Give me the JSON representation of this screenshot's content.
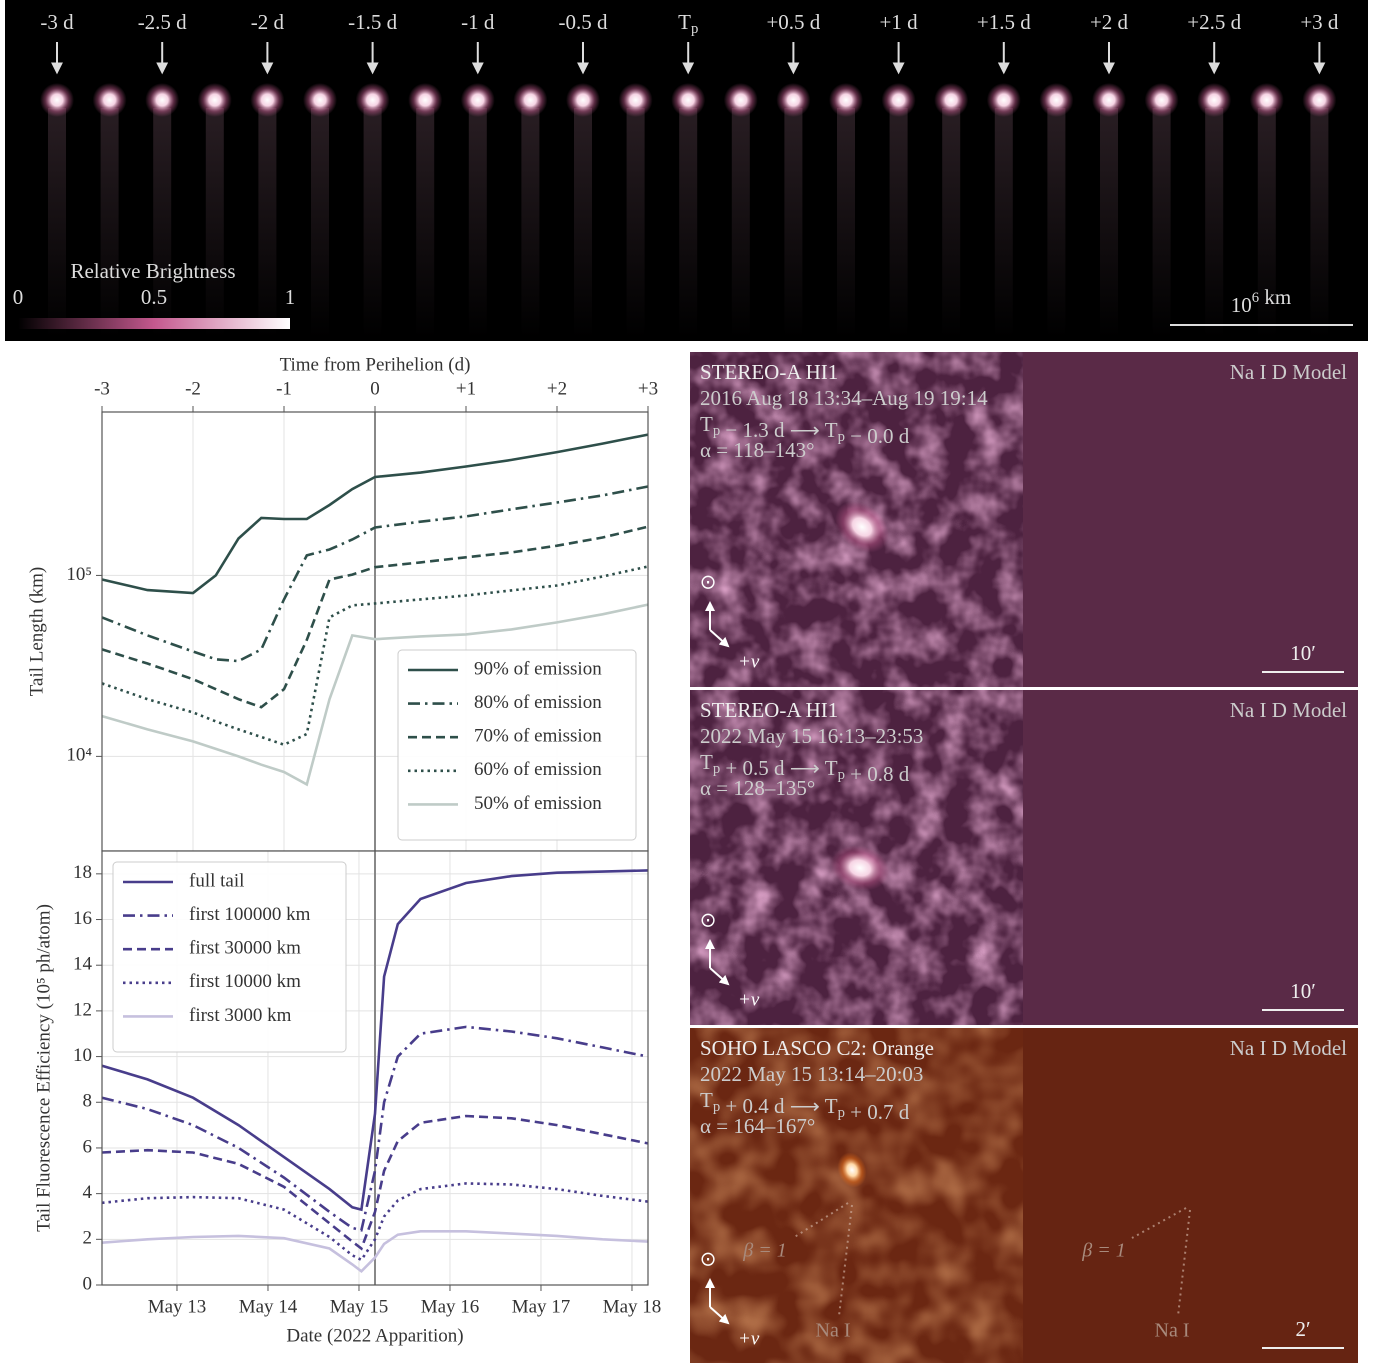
{
  "strip": {
    "labels": [
      "-3 d",
      "-2.5 d",
      "-2 d",
      "-1.5 d",
      "-1 d",
      "-0.5 d",
      [
        "T",
        {
          "sub": "p"
        }
      ],
      "+0.5 d",
      "+1 d",
      "+1.5 d",
      "+2 d",
      "+2.5 d",
      "+3 d"
    ],
    "colorbar": {
      "label": "Relative Brightness",
      "lim": [
        0,
        1
      ],
      "ticks": [
        0,
        0.5,
        1
      ]
    },
    "scale_bar": [
      "10",
      {
        "sup": "6"
      },
      " km"
    ]
  },
  "chart_data": [
    {
      "type": "line",
      "xlabel": "Time from Perihelion (d)",
      "ylabel": "Tail Length (km)",
      "yscale": "log",
      "xlim": [
        -3,
        3
      ],
      "xticks": [
        -3,
        -2,
        -1,
        0,
        {
          "value": 1,
          "label": "+1"
        },
        {
          "value": 2,
          "label": "+2"
        },
        {
          "value": 3,
          "label": "+3"
        }
      ],
      "ylim": [
        3000,
        800000
      ],
      "yticks": [
        {
          "value": 10000,
          "label": "10⁴"
        },
        {
          "value": 100000,
          "label": "10⁵"
        }
      ],
      "grid": true,
      "legend": "lower right",
      "vline": 0,
      "x": [
        -3,
        -2.5,
        -2,
        -1.75,
        -1.5,
        -1.25,
        -1,
        -0.75,
        -0.5,
        -0.25,
        0,
        0.5,
        1,
        1.5,
        2,
        2.5,
        3
      ],
      "series": [
        {
          "name": "90% of emission",
          "color": "#2e4f4a",
          "linestyle": "solid",
          "values": [
            95000,
            83000,
            80000,
            100000,
            160000,
            208000,
            205000,
            205000,
            245000,
            300000,
            350000,
            370000,
            400000,
            435000,
            480000,
            535000,
            600000
          ]
        },
        {
          "name": "80% of emission",
          "color": "#2e4f4a",
          "linestyle": "dashdot",
          "values": [
            58600,
            46600,
            38000,
            34400,
            33600,
            39000,
            73700,
            129000,
            139000,
            158000,
            184000,
            198000,
            212000,
            232000,
            253000,
            277000,
            310000
          ]
        },
        {
          "name": "70% of emission",
          "color": "#2e4f4a",
          "linestyle": "dashed",
          "values": [
            39000,
            32600,
            26700,
            23500,
            20700,
            18700,
            23500,
            44000,
            95000,
            101000,
            111000,
            118000,
            126000,
            134000,
            146000,
            162000,
            186000
          ]
        },
        {
          "name": "60% of emission",
          "color": "#2e4f4a",
          "linestyle": "dotted",
          "values": [
            25300,
            20700,
            17500,
            15600,
            14100,
            12800,
            11600,
            13300,
            58600,
            68300,
            70000,
            73700,
            77500,
            82600,
            88000,
            98700,
            112000
          ]
        },
        {
          "name": "50% of emission",
          "color": "#bfcbc7",
          "linestyle": "solid",
          "values": [
            16700,
            14100,
            12100,
            11000,
            10000,
            9000,
            8200,
            7000,
            20700,
            46600,
            44400,
            46000,
            47200,
            50300,
            55000,
            61000,
            69000
          ]
        }
      ]
    },
    {
      "type": "line",
      "xlabel": "Date (2022 Apparition)",
      "ylabel": "Tail Fluorescence Efficiency (10⁵ ph/atom)",
      "xlim": [
        -3,
        3
      ],
      "xticks": [
        {
          "value": -2.176,
          "label": "May 13"
        },
        {
          "value": -1.176,
          "label": "May 14"
        },
        {
          "value": -0.176,
          "label": "May 15"
        },
        {
          "value": 0.824,
          "label": "May 16"
        },
        {
          "value": 1.824,
          "label": "May 17"
        },
        {
          "value": 2.824,
          "label": "May 18"
        }
      ],
      "ylim": [
        0,
        19
      ],
      "yticks": [
        0,
        2,
        4,
        6,
        8,
        10,
        12,
        14,
        16,
        18
      ],
      "grid": true,
      "legend": "upper left",
      "vline": 0,
      "x": [
        -3,
        -2.5,
        -2,
        -1.5,
        -1,
        -0.5,
        -0.25,
        -0.15,
        0,
        0.1,
        0.25,
        0.5,
        1,
        1.5,
        2,
        2.5,
        3
      ],
      "series": [
        {
          "name": "full tail",
          "color": "#483d8b",
          "linestyle": "solid",
          "values": [
            9.6,
            9.0,
            8.2,
            7.0,
            5.6,
            4.2,
            3.4,
            3.3,
            7.5,
            13.5,
            15.8,
            16.9,
            17.6,
            17.9,
            18.05,
            18.1,
            18.15
          ]
        },
        {
          "name": "first 100000 km",
          "color": "#483d8b",
          "linestyle": "dashdot",
          "values": [
            8.2,
            7.7,
            7.0,
            6.0,
            4.7,
            3.2,
            2.5,
            2.4,
            5.0,
            8.0,
            10.0,
            11.0,
            11.3,
            11.1,
            10.8,
            10.4,
            10.0
          ]
        },
        {
          "name": "first 30000 km",
          "color": "#483d8b",
          "linestyle": "dashed",
          "values": [
            5.8,
            5.9,
            5.8,
            5.3,
            4.3,
            2.7,
            1.9,
            1.6,
            3.2,
            5.0,
            6.3,
            7.1,
            7.4,
            7.3,
            7.0,
            6.6,
            6.2
          ]
        },
        {
          "name": "first 10000 km",
          "color": "#483d8b",
          "linestyle": "dotted",
          "values": [
            3.6,
            3.8,
            3.85,
            3.8,
            3.3,
            2.1,
            1.3,
            1.1,
            2.0,
            3.0,
            3.7,
            4.2,
            4.45,
            4.4,
            4.2,
            3.9,
            3.65
          ]
        },
        {
          "name": "first 3000 km",
          "color": "#c6c0de",
          "linestyle": "solid",
          "values": [
            1.85,
            2.0,
            2.1,
            2.15,
            2.05,
            1.6,
            0.9,
            0.6,
            1.2,
            1.8,
            2.2,
            2.35,
            2.35,
            2.25,
            2.15,
            2.0,
            1.9
          ]
        }
      ]
    }
  ],
  "panels": [
    {
      "title": "STEREO-A HI1",
      "date": "2016 Aug 18 13:34–Aug 19 19:14",
      "phase": [
        "T",
        {
          "sub": "p"
        },
        " − 1.3 d ⟶ ",
        "T",
        {
          "sub": "p"
        },
        " − 0.0 d"
      ],
      "alpha": "α = 118–143°",
      "model": "Na I D Model",
      "scale": "10′",
      "sun": "⊙",
      "velocity": "+v"
    },
    {
      "title": "STEREO-A HI1",
      "date": "2022 May 15 16:13–23:53",
      "phase": [
        "T",
        {
          "sub": "p"
        },
        " + 0.5 d ⟶ ",
        "T",
        {
          "sub": "p"
        },
        " + 0.8 d"
      ],
      "alpha": "α = 128–135°",
      "model": "Na I D Model",
      "scale": "10′",
      "sun": "⊙",
      "velocity": "+v"
    },
    {
      "title": "SOHO LASCO C2: Orange",
      "date": "2022 May 15 13:14–20:03",
      "phase": [
        "T",
        {
          "sub": "p"
        },
        " + 0.4 d ⟶ ",
        "T",
        {
          "sub": "p"
        },
        " + 0.7 d"
      ],
      "alpha": "α = 164–167°",
      "model": "Na I D Model",
      "scale": "2′",
      "sun": "⊙",
      "velocity": "+v",
      "annotations": [
        "β = 1",
        "Na I"
      ]
    }
  ]
}
